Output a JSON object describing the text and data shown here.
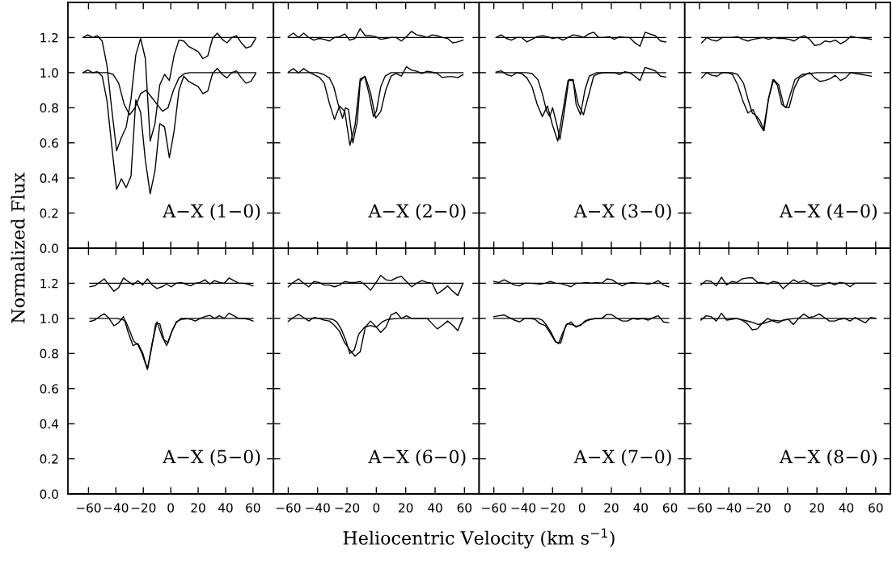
{
  "chart_data": [
    {
      "type": "line",
      "ylabel": "Normalized Flux",
      "annotations": [
        "A−X (1−0)"
      ],
      "xlim": [
        -75,
        75
      ],
      "ylim": [
        0,
        1.4
      ],
      "tick_labels": "y",
      "xticks": [
        {
          "value": -60,
          "label": null
        },
        {
          "value": -40,
          "label": null
        },
        {
          "value": -20,
          "label": null
        },
        {
          "value": 0,
          "label": null
        },
        {
          "value": 20,
          "label": null
        },
        {
          "value": 40,
          "label": null
        },
        {
          "value": 60,
          "label": null
        }
      ],
      "yticks": [
        {
          "value": 0,
          "label": "0.0"
        },
        {
          "value": 0.2,
          "label": "0.2"
        },
        {
          "value": 0.4,
          "label": "0.4"
        },
        {
          "value": 0.6,
          "label": "0.6"
        },
        {
          "value": 0.8,
          "label": "0.8"
        },
        {
          "value": 1.0,
          "label": "1.0"
        },
        {
          "value": 1.2,
          "label": "1.2"
        }
      ],
      "x": [
        -64,
        -60.5,
        -57,
        -53.5,
        -50,
        -46.5,
        -43,
        -39.5,
        -36,
        -32.5,
        -29,
        -25.5,
        -22,
        -18.5,
        -15,
        -11.5,
        -8,
        -4.5,
        -1,
        2.5,
        6,
        9.5,
        13,
        16.5,
        20,
        23.5,
        27,
        30.5,
        34,
        37.5,
        41,
        44.5,
        48,
        51.5,
        55,
        58.5,
        62
      ],
      "series": [
        {
          "color": "#000000",
          "values": [
            1.2,
            1.215,
            1.2,
            1.21,
            1.18,
            1.04,
            0.79,
            0.555,
            0.63,
            0.69,
            0.85,
            1.1,
            1.195,
            1.08,
            0.61,
            0.71,
            0.93,
            0.99,
            0.955,
            1.1,
            1.185,
            1.18,
            1.15,
            1.135,
            1.12,
            1.08,
            1.095,
            1.195,
            1.225,
            1.19,
            1.17,
            1.2,
            1.21,
            1.17,
            1.14,
            1.15,
            1.195
          ]
        },
        {
          "color": "#000000",
          "values": [
            1.0,
            1.015,
            1.0,
            1.005,
            0.98,
            0.84,
            0.58,
            0.335,
            0.395,
            0.345,
            0.41,
            0.845,
            0.775,
            0.5,
            0.31,
            0.44,
            0.71,
            0.69,
            0.515,
            0.67,
            0.9,
            0.98,
            0.95,
            0.935,
            0.92,
            0.88,
            0.895,
            0.995,
            1.025,
            0.99,
            0.97,
            1.0,
            1.01,
            0.97,
            0.94,
            0.95,
            0.995
          ]
        },
        {
          "color": "#000000",
          "x": [
            -64,
            62
          ],
          "values": [
            1.2,
            1.2
          ]
        },
        {
          "color": "#000000",
          "x": [
            -64,
            -46,
            -42,
            -38,
            -34,
            -30,
            -26,
            -22,
            -18,
            -14,
            -10,
            -6,
            -2,
            2,
            6,
            10,
            14,
            62
          ],
          "values": [
            1.0,
            1.0,
            0.99,
            0.94,
            0.82,
            0.76,
            0.8,
            0.88,
            0.9,
            0.86,
            0.82,
            0.78,
            0.8,
            0.9,
            0.97,
            0.995,
            1.0,
            1.0
          ]
        }
      ]
    },
    {
      "type": "line",
      "annotations": [
        "A−X (2−0)"
      ],
      "xlim": [
        -70,
        70
      ],
      "ylim": [
        0,
        1.4
      ],
      "tick_labels": false,
      "xticks": [
        {
          "value": -60,
          "label": null
        },
        {
          "value": -40,
          "label": null
        },
        {
          "value": -20,
          "label": null
        },
        {
          "value": 0,
          "label": null
        },
        {
          "value": 20,
          "label": null
        },
        {
          "value": 40,
          "label": null
        },
        {
          "value": 60,
          "label": null
        }
      ],
      "yticks": [
        {
          "value": 0,
          "label": null
        },
        {
          "value": 0.2,
          "label": null
        },
        {
          "value": 0.4,
          "label": null
        },
        {
          "value": 0.6,
          "label": null
        },
        {
          "value": 0.8,
          "label": null
        },
        {
          "value": 1.0,
          "label": null
        },
        {
          "value": 1.2,
          "label": null
        }
      ],
      "x": [
        -60,
        -56.5,
        -53,
        -49.5,
        -46,
        -42.5,
        -39,
        -35.5,
        -32,
        -28.5,
        -25,
        -21.5,
        -18,
        -14.5,
        -11,
        -7.5,
        -4,
        -0.5,
        3,
        6.5,
        10,
        13.5,
        17,
        20.5,
        24,
        27.5,
        31,
        34.5,
        38,
        41.5,
        45,
        48.5,
        52,
        55.5,
        59
      ],
      "series": [
        {
          "color": "#000000",
          "values": [
            1.205,
            1.225,
            1.2,
            1.225,
            1.2,
            1.185,
            1.195,
            1.19,
            1.18,
            1.2,
            1.205,
            1.22,
            1.185,
            1.195,
            1.25,
            1.21,
            1.21,
            1.205,
            1.19,
            1.195,
            1.2,
            1.2,
            1.18,
            1.205,
            1.235,
            1.215,
            1.21,
            1.2,
            1.215,
            1.21,
            1.2,
            1.195,
            1.17,
            1.175,
            1.185
          ]
        },
        {
          "color": "#000000",
          "values": [
            1.003,
            1.023,
            0.998,
            1.023,
            1.003,
            0.988,
            0.975,
            0.941,
            0.826,
            0.733,
            0.81,
            0.779,
            0.586,
            0.702,
            0.965,
            0.977,
            0.887,
            0.741,
            0.779,
            0.903,
            0.98,
            0.995,
            0.98,
            1.034,
            1.014,
            1.008,
            0.995,
            1.008,
            1.003,
            0.995,
            0.972,
            0.977,
            0.977,
            0.972,
            0.988
          ]
        },
        {
          "color": "#000000",
          "x": [
            -60,
            59
          ],
          "values": [
            1.2,
            1.2
          ]
        },
        {
          "color": "#000000",
          "x": [
            -60,
            -40,
            -36,
            -32,
            -29,
            -26,
            -23,
            -21,
            -19,
            -16,
            -13,
            -11,
            -8,
            -5,
            -2,
            0,
            3,
            6,
            10,
            59
          ],
          "values": [
            1.0,
            1.0,
            0.99,
            0.97,
            0.92,
            0.82,
            0.74,
            0.8,
            0.79,
            0.6,
            0.72,
            0.95,
            0.98,
            0.88,
            0.75,
            0.78,
            0.92,
            0.98,
            1.0,
            1.0
          ]
        }
      ]
    },
    {
      "type": "line",
      "annotations": [
        "A−X (3−0)"
      ],
      "xlim": [
        -70,
        70
      ],
      "ylim": [
        0,
        1.4
      ],
      "tick_labels": false,
      "xticks": [
        {
          "value": -60,
          "label": null
        },
        {
          "value": -40,
          "label": null
        },
        {
          "value": -20,
          "label": null
        },
        {
          "value": 0,
          "label": null
        },
        {
          "value": 20,
          "label": null
        },
        {
          "value": 40,
          "label": null
        },
        {
          "value": 60,
          "label": null
        }
      ],
      "yticks": [
        {
          "value": 0,
          "label": null
        },
        {
          "value": 0.2,
          "label": null
        },
        {
          "value": 0.4,
          "label": null
        },
        {
          "value": 0.6,
          "label": null
        },
        {
          "value": 0.8,
          "label": null
        },
        {
          "value": 1.0,
          "label": null
        },
        {
          "value": 1.2,
          "label": null
        }
      ],
      "x": [
        -58.5,
        -55,
        -51.5,
        -48,
        -44.5,
        -41,
        -37.5,
        -34,
        -30.5,
        -27,
        -23.5,
        -20,
        -16.5,
        -13,
        -9.5,
        -6,
        -2.5,
        1,
        4.5,
        8,
        11.5,
        15,
        18.5,
        22,
        25.5,
        29,
        32.5,
        36,
        39.5,
        43,
        46.5,
        50,
        53.5,
        57
      ],
      "series": [
        {
          "color": "#000000",
          "values": [
            1.2,
            1.215,
            1.195,
            1.185,
            1.2,
            1.2,
            1.175,
            1.19,
            1.205,
            1.21,
            1.205,
            1.195,
            1.2,
            1.185,
            1.2,
            1.215,
            1.21,
            1.2,
            1.22,
            1.23,
            1.2,
            1.2,
            1.205,
            1.19,
            1.205,
            1.2,
            1.2,
            1.17,
            1.15,
            1.23,
            1.22,
            1.21,
            1.18,
            1.175
          ]
        },
        {
          "color": "#000000",
          "values": [
            1.003,
            1.01,
            0.99,
            0.98,
            1.0,
            0.995,
            0.97,
            0.92,
            0.82,
            0.75,
            0.81,
            0.7,
            0.61,
            0.78,
            0.955,
            0.955,
            0.82,
            0.76,
            0.87,
            0.98,
            0.995,
            1.0,
            1.0,
            1.0,
            0.99,
            1.005,
            1.0,
            0.98,
            0.955,
            1.03,
            1.02,
            1.01,
            0.98,
            0.975
          ]
        },
        {
          "color": "#000000",
          "x": [
            -58.5,
            57
          ],
          "values": [
            1.2,
            1.2
          ]
        },
        {
          "color": "#000000",
          "x": [
            -58.5,
            -38,
            -34,
            -30,
            -27,
            -24,
            -22,
            -20,
            -17,
            -15,
            -12,
            -9,
            -6,
            -4,
            -1,
            2,
            5,
            10,
            57
          ],
          "values": [
            1.0,
            1.0,
            0.995,
            0.96,
            0.88,
            0.78,
            0.75,
            0.8,
            0.7,
            0.62,
            0.78,
            0.96,
            0.96,
            0.82,
            0.76,
            0.9,
            0.98,
            1.0,
            1.0
          ]
        }
      ]
    },
    {
      "type": "line",
      "annotations": [
        "A−X (4−0)"
      ],
      "xlim": [
        -70,
        70
      ],
      "ylim": [
        0,
        1.4
      ],
      "tick_labels": false,
      "xticks": [
        {
          "value": -60,
          "label": null
        },
        {
          "value": -40,
          "label": null
        },
        {
          "value": -20,
          "label": null
        },
        {
          "value": 0,
          "label": null
        },
        {
          "value": 20,
          "label": null
        },
        {
          "value": 40,
          "label": null
        },
        {
          "value": 60,
          "label": null
        }
      ],
      "yticks": [
        {
          "value": 0,
          "label": null
        },
        {
          "value": 0.2,
          "label": null
        },
        {
          "value": 0.4,
          "label": null
        },
        {
          "value": 0.6,
          "label": null
        },
        {
          "value": 0.8,
          "label": null
        },
        {
          "value": 1.0,
          "label": null
        },
        {
          "value": 1.2,
          "label": null
        }
      ],
      "x": [
        -58.5,
        -55,
        -51.5,
        -48,
        -44.5,
        -41,
        -37.5,
        -34,
        -30.5,
        -27,
        -23.5,
        -20,
        -16.5,
        -13,
        -9.5,
        -6,
        -2.5,
        1,
        4.5,
        8,
        11.5,
        15,
        18.5,
        22,
        25.5,
        29,
        32.5,
        36,
        39.5,
        43,
        46.5,
        50,
        53.5,
        57
      ],
      "series": [
        {
          "color": "#000000",
          "values": [
            1.17,
            1.2,
            1.185,
            1.18,
            1.2,
            1.2,
            1.2,
            1.205,
            1.19,
            1.18,
            1.19,
            1.195,
            1.2,
            1.19,
            1.2,
            1.195,
            1.195,
            1.19,
            1.18,
            1.2,
            1.21,
            1.19,
            1.155,
            1.16,
            1.18,
            1.175,
            1.185,
            1.165,
            1.18,
            1.207,
            1.2,
            1.198,
            1.195,
            1.19
          ]
        },
        {
          "color": "#000000",
          "values": [
            0.97,
            1.0,
            0.985,
            0.98,
            1.0,
            1.0,
            0.99,
            0.93,
            0.84,
            0.77,
            0.79,
            0.72,
            0.67,
            0.85,
            0.96,
            0.93,
            0.81,
            0.8,
            0.91,
            0.97,
            0.985,
            1.0,
            0.97,
            0.95,
            0.955,
            0.965,
            0.985,
            0.955,
            0.97,
            1.0,
            0.995,
            0.99,
            0.985,
            0.98
          ]
        },
        {
          "color": "#000000",
          "x": [
            -58.5,
            57
          ],
          "values": [
            1.2,
            1.2
          ]
        },
        {
          "color": "#000000",
          "x": [
            -58.5,
            -38,
            -34,
            -30,
            -27,
            -24,
            -22,
            -19,
            -16,
            -13,
            -10,
            -7,
            -4,
            -1,
            2,
            5,
            10,
            20,
            57
          ],
          "values": [
            1.0,
            1.0,
            0.99,
            0.94,
            0.85,
            0.77,
            0.76,
            0.73,
            0.67,
            0.85,
            0.96,
            0.93,
            0.82,
            0.8,
            0.88,
            0.96,
            0.99,
            1.0,
            1.0
          ]
        }
      ]
    },
    {
      "type": "line",
      "xlabel": "Heliocentric Velocity (km s$^{−1}$)",
      "annotations": [
        "A−X (5−0)"
      ],
      "xlim": [
        -75,
        75
      ],
      "ylim": [
        0,
        1.4
      ],
      "xticks": [
        {
          "value": -60,
          "label": "−60"
        },
        {
          "value": -40,
          "label": "−40"
        },
        {
          "value": -20,
          "label": "−20"
        },
        0,
        20,
        40,
        60
      ],
      "yticks": [
        {
          "value": 0,
          "label": "0.0"
        },
        {
          "value": 0.2,
          "label": "0.2"
        },
        {
          "value": 0.4,
          "label": "0.4"
        },
        {
          "value": 0.6,
          "label": "0.6"
        },
        {
          "value": 0.8,
          "label": "0.8"
        },
        {
          "value": 1.0,
          "label": "1.0"
        },
        {
          "value": 1.2,
          "label": "1.2"
        }
      ],
      "x": [
        -59,
        -55.5,
        -52,
        -48.5,
        -45,
        -41.5,
        -38,
        -34.5,
        -31,
        -27.5,
        -24,
        -20.5,
        -17,
        -13.5,
        -10,
        -6.5,
        -3,
        0.5,
        4,
        7.5,
        11,
        14.5,
        18,
        21.5,
        25,
        28.5,
        32,
        35.5,
        39,
        42.5,
        46,
        49.5,
        53,
        56.5,
        60
      ],
      "series": [
        {
          "color": "#000000",
          "values": [
            1.18,
            1.185,
            1.205,
            1.225,
            1.19,
            1.155,
            1.175,
            1.23,
            1.21,
            1.19,
            1.215,
            1.19,
            1.225,
            1.19,
            1.17,
            1.18,
            1.195,
            1.18,
            1.2,
            1.205,
            1.195,
            1.185,
            1.2,
            1.205,
            1.22,
            1.195,
            1.215,
            1.205,
            1.2,
            1.23,
            1.215,
            1.2,
            1.2,
            1.195,
            1.185
          ]
        },
        {
          "color": "#000000",
          "values": [
            0.983,
            0.99,
            1.01,
            1.026,
            1.0,
            0.958,
            0.975,
            1.01,
            0.92,
            0.845,
            0.857,
            0.805,
            0.71,
            0.86,
            0.98,
            0.9,
            0.845,
            0.92,
            0.975,
            1.0,
            1.0,
            0.995,
            0.985,
            1.0,
            1.01,
            1.017,
            1.0,
            1.015,
            1.0,
            1.03,
            1.015,
            1.0,
            1.0,
            0.995,
            0.985
          ]
        },
        {
          "color": "#000000",
          "x": [
            -59,
            60
          ],
          "values": [
            1.2,
            1.2
          ]
        },
        {
          "color": "#000000",
          "x": [
            -59,
            -40,
            -36,
            -33,
            -30,
            -27,
            -24,
            -21,
            -17,
            -14,
            -11,
            -8,
            -5,
            -2,
            1,
            4,
            8,
            15,
            60
          ],
          "values": [
            1.0,
            1.0,
            0.995,
            0.985,
            0.93,
            0.87,
            0.85,
            0.8,
            0.71,
            0.83,
            0.97,
            0.97,
            0.88,
            0.86,
            0.93,
            0.98,
            0.995,
            1.0,
            1.0
          ]
        }
      ]
    },
    {
      "type": "line",
      "annotations": [
        "A−X (6−0)"
      ],
      "xlim": [
        -70,
        70
      ],
      "ylim": [
        0,
        1.4
      ],
      "tick_labels": "x",
      "xticks": [
        {
          "value": -60,
          "label": "−60"
        },
        {
          "value": -40,
          "label": "−40"
        },
        {
          "value": -20,
          "label": "−20"
        },
        0,
        20,
        40,
        60
      ],
      "yticks": [
        {
          "value": 0,
          "label": null
        },
        {
          "value": 0.2,
          "label": null
        },
        {
          "value": 0.4,
          "label": null
        },
        {
          "value": 0.6,
          "label": null
        },
        {
          "value": 0.8,
          "label": null
        },
        {
          "value": 1.0,
          "label": null
        },
        {
          "value": 1.2,
          "label": null
        }
      ],
      "x": [
        -60,
        -56.5,
        -53,
        -49.5,
        -46,
        -42.5,
        -39,
        -35.5,
        -32,
        -28.5,
        -25,
        -21.5,
        -18,
        -14.5,
        -11,
        -7.5,
        -4,
        -0.5,
        3,
        6.5,
        10,
        13.5,
        17,
        20.5,
        24,
        27.5,
        31,
        34.5,
        38,
        41.5,
        45,
        48.5,
        52,
        55.5,
        59
      ],
      "series": [
        {
          "color": "#000000",
          "values": [
            1.18,
            1.205,
            1.225,
            1.2,
            1.18,
            1.21,
            1.205,
            1.19,
            1.19,
            1.18,
            1.19,
            1.21,
            1.205,
            1.205,
            1.21,
            1.19,
            1.16,
            1.2,
            1.245,
            1.22,
            1.215,
            1.23,
            1.24,
            1.21,
            1.18,
            1.2,
            1.215,
            1.205,
            1.2,
            1.14,
            1.16,
            1.185,
            1.155,
            1.13,
            1.2
          ]
        },
        {
          "color": "#000000",
          "values": [
            0.983,
            1.005,
            1.023,
            1.005,
            0.985,
            1.005,
            1.0,
            0.99,
            0.985,
            0.96,
            0.925,
            0.86,
            0.82,
            0.785,
            0.81,
            0.95,
            0.985,
            0.955,
            0.92,
            0.95,
            1.02,
            1.035,
            1.0,
            1.015,
            1.0,
            1.0,
            1.0,
            1.0,
            0.97,
            0.94,
            0.96,
            0.985,
            0.96,
            0.93,
            1.005
          ]
        },
        {
          "color": "#000000",
          "x": [
            -60,
            59
          ],
          "values": [
            1.2,
            1.2
          ]
        },
        {
          "color": "#000000",
          "x": [
            -60,
            -35,
            -30,
            -27,
            -24,
            -21,
            -18,
            -15,
            -12,
            -8,
            -4,
            0,
            4,
            8,
            15,
            59
          ],
          "values": [
            1.0,
            1.0,
            0.995,
            0.98,
            0.94,
            0.88,
            0.8,
            0.82,
            0.91,
            0.95,
            0.96,
            0.95,
            0.98,
            0.995,
            1.0,
            1.0
          ]
        }
      ]
    },
    {
      "type": "line",
      "annotations": [
        "A−X (7−0)"
      ],
      "xlim": [
        -70,
        70
      ],
      "ylim": [
        0,
        1.4
      ],
      "tick_labels": "x",
      "xticks": [
        {
          "value": -60,
          "label": "−60"
        },
        {
          "value": -40,
          "label": "−40"
        },
        {
          "value": -20,
          "label": "−20"
        },
        0,
        20,
        40,
        60
      ],
      "yticks": [
        {
          "value": 0,
          "label": null
        },
        {
          "value": 0.2,
          "label": null
        },
        {
          "value": 0.4,
          "label": null
        },
        {
          "value": 0.6,
          "label": null
        },
        {
          "value": 0.8,
          "label": null
        },
        {
          "value": 1.0,
          "label": null
        },
        {
          "value": 1.2,
          "label": null
        }
      ],
      "x": [
        -60,
        -56.5,
        -53,
        -49.5,
        -46,
        -42.5,
        -39,
        -35.5,
        -32,
        -28.5,
        -25,
        -21.5,
        -18,
        -14.5,
        -11,
        -7.5,
        -4,
        -0.5,
        3,
        6.5,
        10,
        13.5,
        17,
        20.5,
        24,
        27.5,
        31,
        34.5,
        38,
        41.5,
        45,
        48.5,
        52,
        55.5,
        59
      ],
      "series": [
        {
          "color": "#000000",
          "values": [
            1.21,
            1.205,
            1.22,
            1.205,
            1.19,
            1.185,
            1.2,
            1.2,
            1.198,
            1.195,
            1.2,
            1.21,
            1.2,
            1.198,
            1.19,
            1.18,
            1.2,
            1.2,
            1.205,
            1.2,
            1.205,
            1.2,
            1.225,
            1.22,
            1.2,
            1.185,
            1.2,
            1.205,
            1.2,
            1.2,
            1.195,
            1.2,
            1.215,
            1.19,
            1.18
          ]
        },
        {
          "color": "#000000",
          "values": [
            1.01,
            1.015,
            1.02,
            1.005,
            0.99,
            0.98,
            1.0,
            1.0,
            0.995,
            0.97,
            0.96,
            0.915,
            0.865,
            0.86,
            0.96,
            0.98,
            0.95,
            0.965,
            0.985,
            0.995,
            1.0,
            1.0,
            1.023,
            1.02,
            1.0,
            0.985,
            0.985,
            1.0,
            0.995,
            1.0,
            0.99,
            1.005,
            1.015,
            0.98,
            0.975
          ]
        },
        {
          "color": "#000000",
          "x": [
            -60,
            59
          ],
          "values": [
            1.2,
            1.2
          ]
        },
        {
          "color": "#000000",
          "x": [
            -60,
            -30,
            -27,
            -24,
            -21,
            -18,
            -16,
            -13,
            -10,
            -7,
            -4,
            -1,
            2,
            5,
            10,
            59
          ],
          "values": [
            1.0,
            1.0,
            0.99,
            0.96,
            0.92,
            0.87,
            0.855,
            0.92,
            0.97,
            0.965,
            0.955,
            0.96,
            0.985,
            0.995,
            1.0,
            1.0
          ]
        }
      ]
    },
    {
      "type": "line",
      "annotations": [
        "A−X (8−0)"
      ],
      "xlim": [
        -70,
        70
      ],
      "ylim": [
        0,
        1.4
      ],
      "tick_labels": "x",
      "xticks": [
        {
          "value": -60,
          "label": "−60"
        },
        {
          "value": -40,
          "label": "−40"
        },
        {
          "value": -20,
          "label": "−20"
        },
        0,
        20,
        40,
        60
      ],
      "yticks": [
        {
          "value": 0,
          "label": null
        },
        {
          "value": 0.2,
          "label": null
        },
        {
          "value": 0.4,
          "label": null
        },
        {
          "value": 0.6,
          "label": null
        },
        {
          "value": 0.8,
          "label": null
        },
        {
          "value": 1.0,
          "label": null
        },
        {
          "value": 1.2,
          "label": null
        }
      ],
      "x": [
        -59,
        -55.5,
        -52,
        -48.5,
        -45,
        -41.5,
        -38,
        -34.5,
        -31,
        -27.5,
        -24,
        -20.5,
        -17,
        -13.5,
        -10,
        -6.5,
        -3,
        0.5,
        4,
        7.5,
        11,
        14.5,
        18,
        21.5,
        25,
        28.5,
        32,
        35.5,
        39,
        42.5,
        46,
        49.5,
        53,
        56.5,
        60
      ],
      "series": [
        {
          "color": "#000000",
          "values": [
            1.19,
            1.215,
            1.21,
            1.185,
            1.235,
            1.19,
            1.21,
            1.205,
            1.225,
            1.23,
            1.232,
            1.205,
            1.205,
            1.195,
            1.21,
            1.205,
            1.17,
            1.195,
            1.22,
            1.205,
            1.215,
            1.2,
            1.185,
            1.185,
            1.195,
            1.205,
            1.19,
            1.205,
            1.2,
            1.18,
            1.2,
            1.2,
            1.2,
            1.2,
            1.2
          ]
        },
        {
          "color": "#000000",
          "values": [
            0.99,
            1.015,
            1.01,
            0.985,
            1.03,
            0.99,
            0.995,
            1.0,
            0.99,
            0.97,
            0.935,
            0.94,
            0.975,
            1.0,
            0.985,
            0.975,
            0.99,
            0.995,
            0.965,
            1.0,
            1.025,
            1.005,
            1.01,
            1.025,
            1.005,
            0.985,
            0.985,
            0.995,
            1.0,
            0.985,
            1.005,
            0.99,
            0.975,
            1.005,
            1.0
          ]
        },
        {
          "color": "#000000",
          "x": [
            -59,
            60
          ],
          "values": [
            1.2,
            1.2
          ]
        },
        {
          "color": "#000000",
          "x": [
            -59,
            -35,
            -30,
            -25,
            -20,
            -15,
            -10,
            -5,
            0,
            5,
            60
          ],
          "values": [
            1.0,
            1.0,
            0.99,
            0.98,
            0.965,
            0.975,
            0.99,
            0.985,
            0.995,
            1.0,
            1.0
          ]
        }
      ]
    }
  ]
}
